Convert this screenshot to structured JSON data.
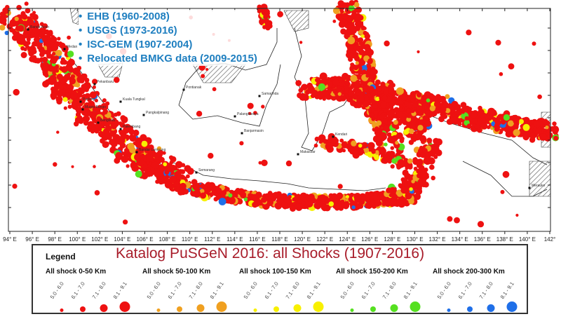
{
  "map": {
    "longitude_ticks": [
      "94° E",
      "96° E",
      "98° E",
      "100° E",
      "102° E",
      "104° E",
      "106° E",
      "108° E",
      "110° E",
      "112° E",
      "114° E",
      "116° E",
      "118° E",
      "120° E",
      "122° E",
      "124° E",
      "126° E",
      "128° E",
      "130° E",
      "132° E",
      "134° E",
      "136° E",
      "138° E",
      "140° E",
      "142°"
    ],
    "cities": [
      "Banda Aceh",
      "Medan",
      "Pekanbaru",
      "Kuala Tungkal",
      "Padang",
      "Muara Bungo",
      "Pangkalpinang",
      "Palembang",
      "Bengkulu",
      "Bandar Lampung",
      "Pontianak",
      "Palangkaraya",
      "Samarinda",
      "Banjarmasin",
      "Semarang",
      "Makassar",
      "Kendari",
      "Merauke"
    ]
  },
  "sources": [
    "EHB (1960-2008)",
    "USGS (1973-2016)",
    "ISC-GEM (1907-2004)",
    "Relocated BMKG data (2009-2015)"
  ],
  "legend": {
    "label": "Legend",
    "title": "Katalog PuSGeN 2016: all Shocks (1907-2016)",
    "magnitudes": [
      "5.0 - 6.0",
      "6.1 - 7.0",
      "7.1 - 8.0",
      "8.1 - 9.1"
    ],
    "groups": [
      {
        "title": "All shock 0-50 Km",
        "color": "#ee1111"
      },
      {
        "title": "All shock 50-100 Km",
        "color": "#f0a020"
      },
      {
        "title": "All shock 100-150 Km",
        "color": "#f8f000"
      },
      {
        "title": "All shock 150-200 Km",
        "color": "#55e020"
      },
      {
        "title": "All shock 200-300 Km",
        "color": "#1f6fe8"
      }
    ]
  }
}
